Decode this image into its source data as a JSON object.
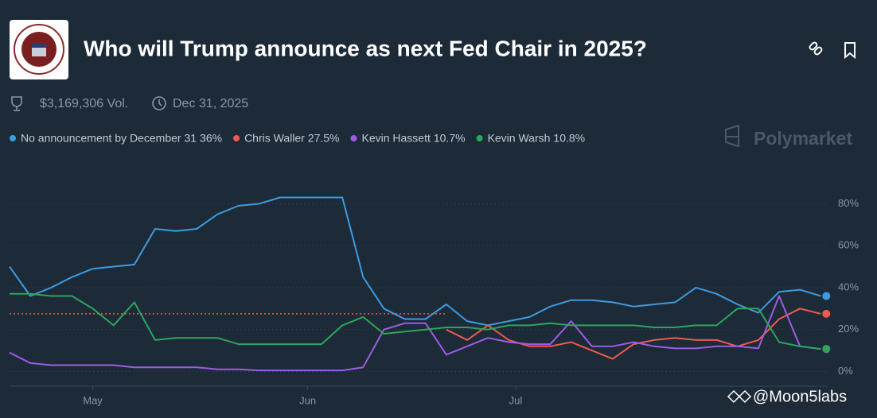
{
  "header": {
    "title": "Who will Trump announce as next Fed Chair in 2025?",
    "volume": "$3,169,306 Vol.",
    "end_date": "Dec 31, 2025"
  },
  "watermarks": {
    "brand": "Polymarket",
    "credit": "@Moon5labs"
  },
  "chart_data": {
    "type": "line",
    "x": [
      0,
      3,
      6,
      9,
      12,
      15,
      18,
      21,
      24,
      27,
      30,
      33,
      36,
      39,
      42,
      45,
      48,
      51,
      54,
      57,
      60,
      63,
      66,
      69,
      72,
      75,
      78,
      81,
      84,
      87,
      90,
      93,
      96,
      99,
      102,
      105,
      108,
      111,
      114,
      117
    ],
    "xlim": [
      0,
      118
    ],
    "xticks": [
      {
        "value": 12,
        "label": "May"
      },
      {
        "value": 43,
        "label": "Jun"
      },
      {
        "value": 73,
        "label": "Jul"
      }
    ],
    "ylim": [
      -4,
      90
    ],
    "yticks": [
      {
        "value": 0,
        "label": "0%"
      },
      {
        "value": 20,
        "label": "20%"
      },
      {
        "value": 40,
        "label": "40%"
      },
      {
        "value": 60,
        "label": "60%"
      },
      {
        "value": 80,
        "label": "80%"
      }
    ],
    "grid": true,
    "series": [
      {
        "name": "No announcement by December 31",
        "legend_value": "36%",
        "color": "#3d9be0",
        "values": [
          50,
          36,
          40,
          45,
          49,
          50,
          51,
          68,
          67,
          68,
          75,
          79,
          80,
          83,
          83,
          83,
          83,
          45,
          30,
          25,
          25,
          32,
          24,
          22,
          24,
          26,
          31,
          34,
          34,
          33,
          31,
          32,
          33,
          40,
          37,
          32,
          28,
          38,
          39,
          36
        ]
      },
      {
        "name": "Chris Waller",
        "legend_value": "27.5%",
        "color": "#ee5a4f",
        "values": [
          null,
          null,
          null,
          null,
          null,
          null,
          null,
          null,
          null,
          null,
          null,
          null,
          null,
          null,
          null,
          null,
          null,
          null,
          null,
          null,
          null,
          20,
          15,
          22,
          15,
          12,
          12,
          14,
          10,
          6,
          13,
          15,
          16,
          15,
          15,
          12,
          15,
          25,
          30,
          27.5
        ]
      },
      {
        "name": "Kevin Hassett",
        "legend_value": "10.7%",
        "color": "#9b5de5",
        "values": [
          9,
          4,
          3,
          3,
          3,
          3,
          2,
          2,
          2,
          2,
          1,
          1,
          0.5,
          0.5,
          0.5,
          0.5,
          0.5,
          2,
          20,
          23,
          23,
          8,
          12,
          16,
          14,
          13,
          13,
          24,
          12,
          12,
          14,
          12,
          11,
          11,
          12,
          12,
          11,
          36,
          12,
          10.7
        ]
      },
      {
        "name": "Kevin Warsh",
        "legend_value": "10.8%",
        "color": "#2ea55e",
        "values": [
          37,
          37,
          36,
          36,
          30,
          22,
          33,
          15,
          16,
          16,
          16,
          13,
          13,
          13,
          13,
          13,
          22,
          26,
          18,
          19,
          20,
          21,
          21,
          20,
          22,
          22,
          23,
          22,
          22,
          22,
          22,
          21,
          21,
          22,
          22,
          30,
          30,
          14,
          12,
          10.8
        ]
      }
    ]
  }
}
